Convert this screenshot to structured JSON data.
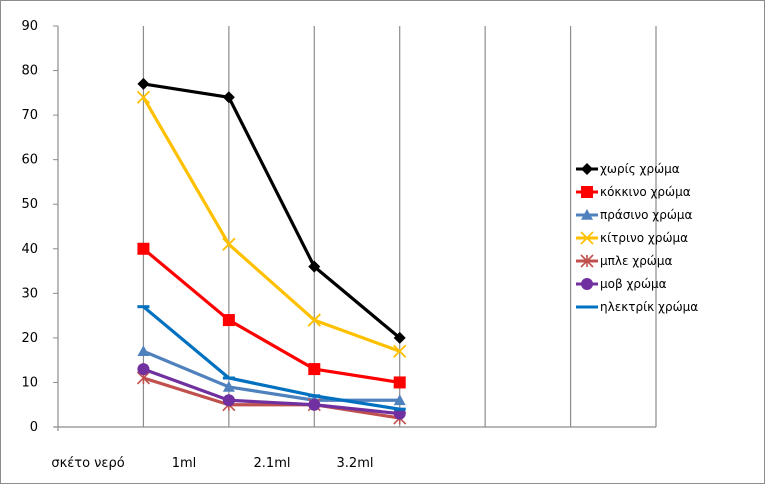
{
  "chart_data": {
    "type": "line",
    "title": "",
    "xlabel": "",
    "ylabel": "",
    "categories": [
      "σκέτο νερό",
      "1ml",
      "2.1ml",
      "3.2ml"
    ],
    "ylim": [
      0,
      90
    ],
    "yticks": [
      0,
      10,
      20,
      30,
      40,
      50,
      60,
      70,
      80,
      90
    ],
    "grid": true,
    "legend_position": "right",
    "series": [
      {
        "name": "χωρίς χρώμα",
        "values": [
          77,
          74,
          36,
          20
        ],
        "color": "#000000",
        "marker": "diamond"
      },
      {
        "name": "κόκκινο χρώμα",
        "values": [
          40,
          24,
          13,
          10
        ],
        "color": "#ff0000",
        "marker": "square"
      },
      {
        "name": "πράσινο χρώμα",
        "values": [
          17,
          9,
          6,
          6
        ],
        "color": "#4f81bd",
        "marker": "triangle"
      },
      {
        "name": "κίτρινο χρώμα",
        "values": [
          74,
          41,
          24,
          17
        ],
        "color": "#ffc000",
        "marker": "x"
      },
      {
        "name": "μπλε χρώμα",
        "values": [
          11,
          5,
          5,
          2
        ],
        "color": "#c0504d",
        "marker": "star"
      },
      {
        "name": "μοβ χρώμα",
        "values": [
          13,
          6,
          5,
          3
        ],
        "color": "#7030a0",
        "marker": "circle"
      },
      {
        "name": "ηλεκτρίκ χρώμα",
        "values": [
          27,
          11,
          7,
          4
        ],
        "color": "#0070c0",
        "marker": "dash"
      }
    ]
  }
}
